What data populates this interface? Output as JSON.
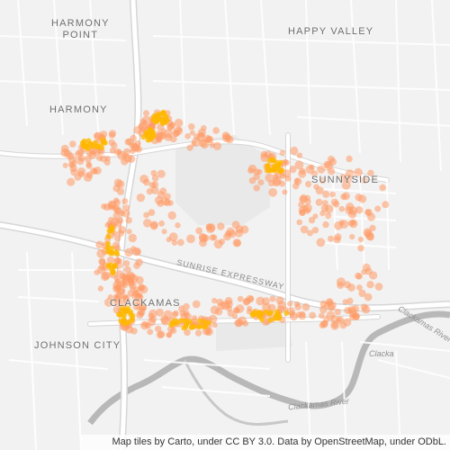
{
  "map": {
    "places": [
      {
        "id": "harmony-point",
        "lines": [
          "HARMONY",
          "POINT"
        ]
      },
      {
        "id": "happy-valley",
        "lines": [
          "HAPPY VALLEY"
        ]
      },
      {
        "id": "harmony",
        "lines": [
          "HARMONY"
        ]
      },
      {
        "id": "sunnyside",
        "lines": [
          "SUNNYSIDE"
        ]
      },
      {
        "id": "clackamas",
        "lines": [
          "CLACKAMAS"
        ]
      },
      {
        "id": "johnson-city",
        "lines": [
          "JOHNSON CITY"
        ]
      }
    ],
    "roads": {
      "sunrise_expressway": "SUNRISE EXPRESSWAY"
    },
    "rivers": {
      "clackamas_river_south": "Clackamas River",
      "clackamas_river_east": "Clackamas River",
      "clackamas_river_east_2": "Clacka"
    },
    "attribution": "Map tiles by Carto, under CC BY 3.0. Data by OpenStreetMap, under ODbL.",
    "colors": {
      "background": "#f2f2f2",
      "road": "#ffffff",
      "river": "#b8b8b8",
      "park": "#e8e8e8",
      "heat_outer": "#ff9a66",
      "heat_core": "#ffb800"
    },
    "heat_clusters": [
      {
        "name": "harmony-north",
        "intensity": 0.9
      },
      {
        "name": "clackamas-town-center",
        "intensity": 1.0
      },
      {
        "name": "sunnyside",
        "intensity": 0.8
      },
      {
        "name": "sunrise-corridor",
        "intensity": 0.9
      }
    ]
  }
}
